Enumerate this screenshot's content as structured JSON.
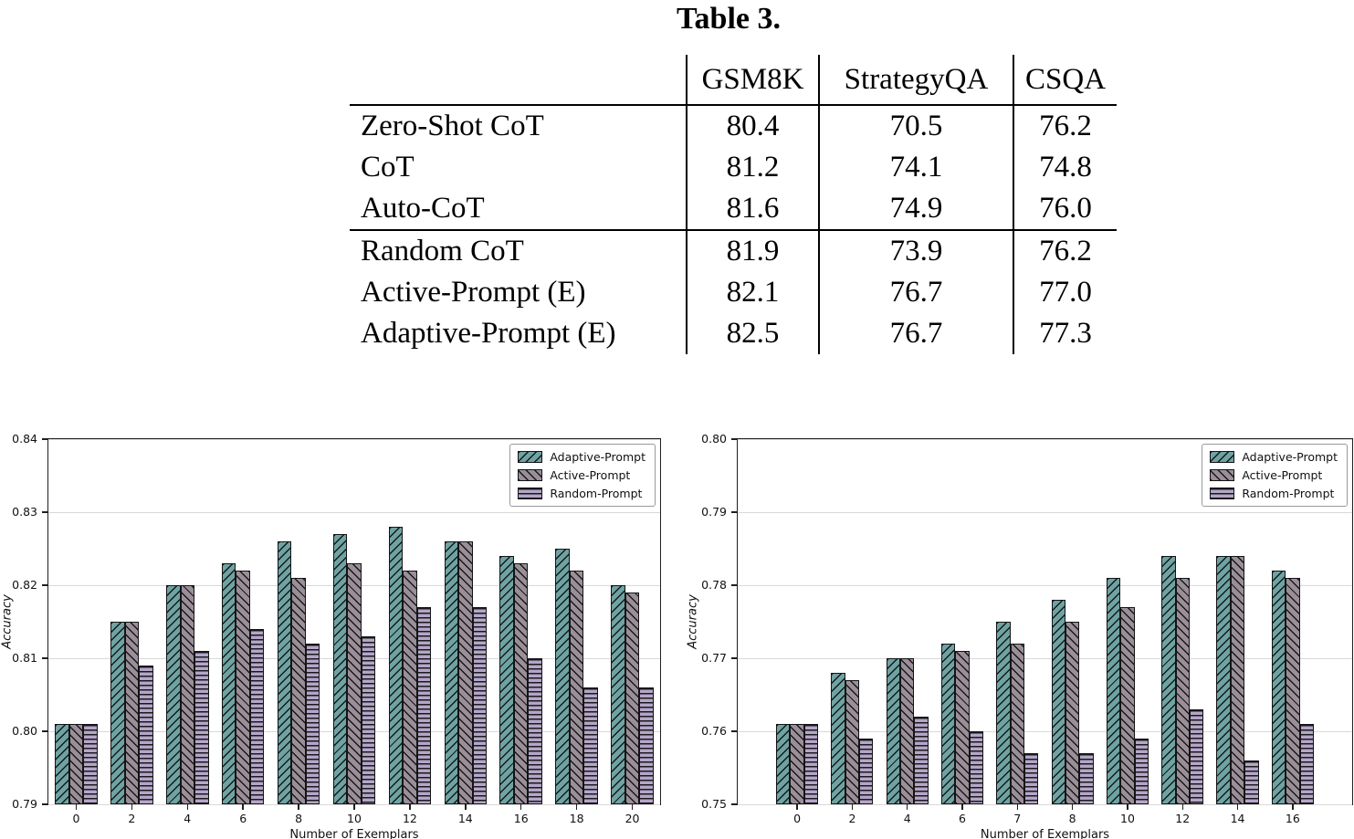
{
  "table": {
    "title": "Table 3.",
    "columns": [
      "",
      "GSM8K",
      "StrategyQA",
      "CSQA"
    ],
    "rows": [
      {
        "label": "Zero-Shot CoT",
        "rule_above": false,
        "values": [
          {
            "text": "80.4",
            "bold": false
          },
          {
            "text": "70.5",
            "bold": false
          },
          {
            "text": "76.2",
            "bold": false
          }
        ]
      },
      {
        "label": "CoT",
        "rule_above": false,
        "values": [
          {
            "text": "81.2",
            "bold": false
          },
          {
            "text": "74.1",
            "bold": false
          },
          {
            "text": "74.8",
            "bold": false
          }
        ]
      },
      {
        "label": "Auto-CoT",
        "rule_above": false,
        "values": [
          {
            "text": "81.6",
            "bold": false
          },
          {
            "text": "74.9",
            "bold": false
          },
          {
            "text": "76.0",
            "bold": false
          }
        ]
      },
      {
        "label": "Random CoT",
        "rule_above": true,
        "values": [
          {
            "text": "81.9",
            "bold": false
          },
          {
            "text": "73.9",
            "bold": false
          },
          {
            "text": "76.2",
            "bold": false
          }
        ]
      },
      {
        "label": "Active-Prompt (E)",
        "rule_above": false,
        "values": [
          {
            "text": "82.1",
            "bold": false
          },
          {
            "text": "76.7",
            "bold": true
          },
          {
            "text": "77.0",
            "bold": false
          }
        ]
      },
      {
        "label": "Adaptive-Prompt (E)",
        "rule_above": false,
        "values": [
          {
            "text": "82.5",
            "bold": true
          },
          {
            "text": "76.7",
            "bold": true
          },
          {
            "text": "77.3",
            "bold": true
          }
        ]
      }
    ]
  },
  "chart_data": [
    {
      "type": "bar",
      "title": "",
      "xlabel": "Number of Exemplars",
      "ylabel": "Accuracy",
      "ylim": [
        0.79,
        0.84
      ],
      "ytick_step": 0.01,
      "grid": true,
      "legend_position": "upper right",
      "x_margin": 0.5,
      "categories": [
        "0",
        "2",
        "4",
        "6",
        "8",
        "10",
        "12",
        "14",
        "16",
        "18",
        "20"
      ],
      "series": [
        {
          "name": "Adaptive-Prompt",
          "color": "#6FA3A3",
          "hatch": "/",
          "values": [
            0.801,
            0.815,
            0.82,
            0.823,
            0.826,
            0.827,
            0.828,
            0.826,
            0.824,
            0.825,
            0.82
          ]
        },
        {
          "name": "Active-Prompt",
          "color": "#9A8F99",
          "hatch": "\\",
          "values": [
            0.801,
            0.815,
            0.82,
            0.822,
            0.821,
            0.823,
            0.822,
            0.826,
            0.823,
            0.822,
            0.819
          ]
        },
        {
          "name": "Random-Prompt",
          "color": "#B4A6C8",
          "hatch": "-",
          "values": [
            0.801,
            0.809,
            0.811,
            0.814,
            0.812,
            0.813,
            0.817,
            0.817,
            0.81,
            0.806,
            0.806
          ]
        }
      ]
    },
    {
      "type": "bar",
      "title": "",
      "xlabel": "Number of Exemplars",
      "ylabel": "Accuracy",
      "ylim": [
        0.75,
        0.8
      ],
      "ytick_step": 0.01,
      "grid": true,
      "legend_position": "upper right",
      "x_margin": 1.08,
      "categories": [
        "0",
        "2",
        "4",
        "6",
        "7",
        "8",
        "10",
        "12",
        "14",
        "16"
      ],
      "series": [
        {
          "name": "Adaptive-Prompt",
          "color": "#6FA3A3",
          "hatch": "/",
          "values": [
            0.761,
            0.768,
            0.77,
            0.772,
            0.775,
            0.778,
            0.781,
            0.784,
            0.784,
            0.782
          ]
        },
        {
          "name": "Active-Prompt",
          "color": "#9A8F99",
          "hatch": "\\",
          "values": [
            0.761,
            0.767,
            0.77,
            0.771,
            0.772,
            0.775,
            0.777,
            0.781,
            0.784,
            0.781
          ]
        },
        {
          "name": "Random-Prompt",
          "color": "#B4A6C8",
          "hatch": "-",
          "values": [
            0.761,
            0.759,
            0.762,
            0.76,
            0.757,
            0.757,
            0.759,
            0.763,
            0.756,
            0.761
          ]
        }
      ]
    }
  ]
}
